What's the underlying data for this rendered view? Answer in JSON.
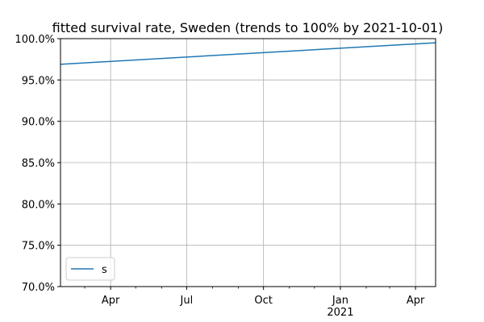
{
  "chart_data": {
    "type": "line",
    "title": "fitted survival rate, Sweden (trends to 100% by 2021-10-01)",
    "xlabel": "",
    "ylabel": "",
    "xlim": [
      "2020-02-01",
      "2021-04-25"
    ],
    "ylim": [
      70.0,
      100.0
    ],
    "y_unit": "%",
    "yticks": [
      70.0,
      75.0,
      80.0,
      85.0,
      90.0,
      95.0,
      100.0
    ],
    "ytick_labels": [
      "70.0%",
      "75.0%",
      "80.0%",
      "85.0%",
      "90.0%",
      "95.0%",
      "100.0%"
    ],
    "xticks_major": [
      {
        "date": "2020-04-01",
        "label": "Apr",
        "sublabel": ""
      },
      {
        "date": "2020-07-01",
        "label": "Jul",
        "sublabel": ""
      },
      {
        "date": "2020-10-01",
        "label": "Oct",
        "sublabel": ""
      },
      {
        "date": "2021-01-01",
        "label": "Jan",
        "sublabel": "2021"
      },
      {
        "date": "2021-04-01",
        "label": "Apr",
        "sublabel": ""
      }
    ],
    "xticks_minor": [
      "2020-03-01",
      "2020-05-01",
      "2020-06-01",
      "2020-08-01",
      "2020-09-01",
      "2020-11-01",
      "2020-12-01",
      "2021-02-01",
      "2021-03-01"
    ],
    "grid": true,
    "legend_position": "lower-left",
    "series": [
      {
        "name": "s",
        "color": "#1f77b4",
        "x": [
          "2020-02-01",
          "2021-04-25"
        ],
        "y": [
          96.9,
          99.5
        ]
      }
    ]
  }
}
